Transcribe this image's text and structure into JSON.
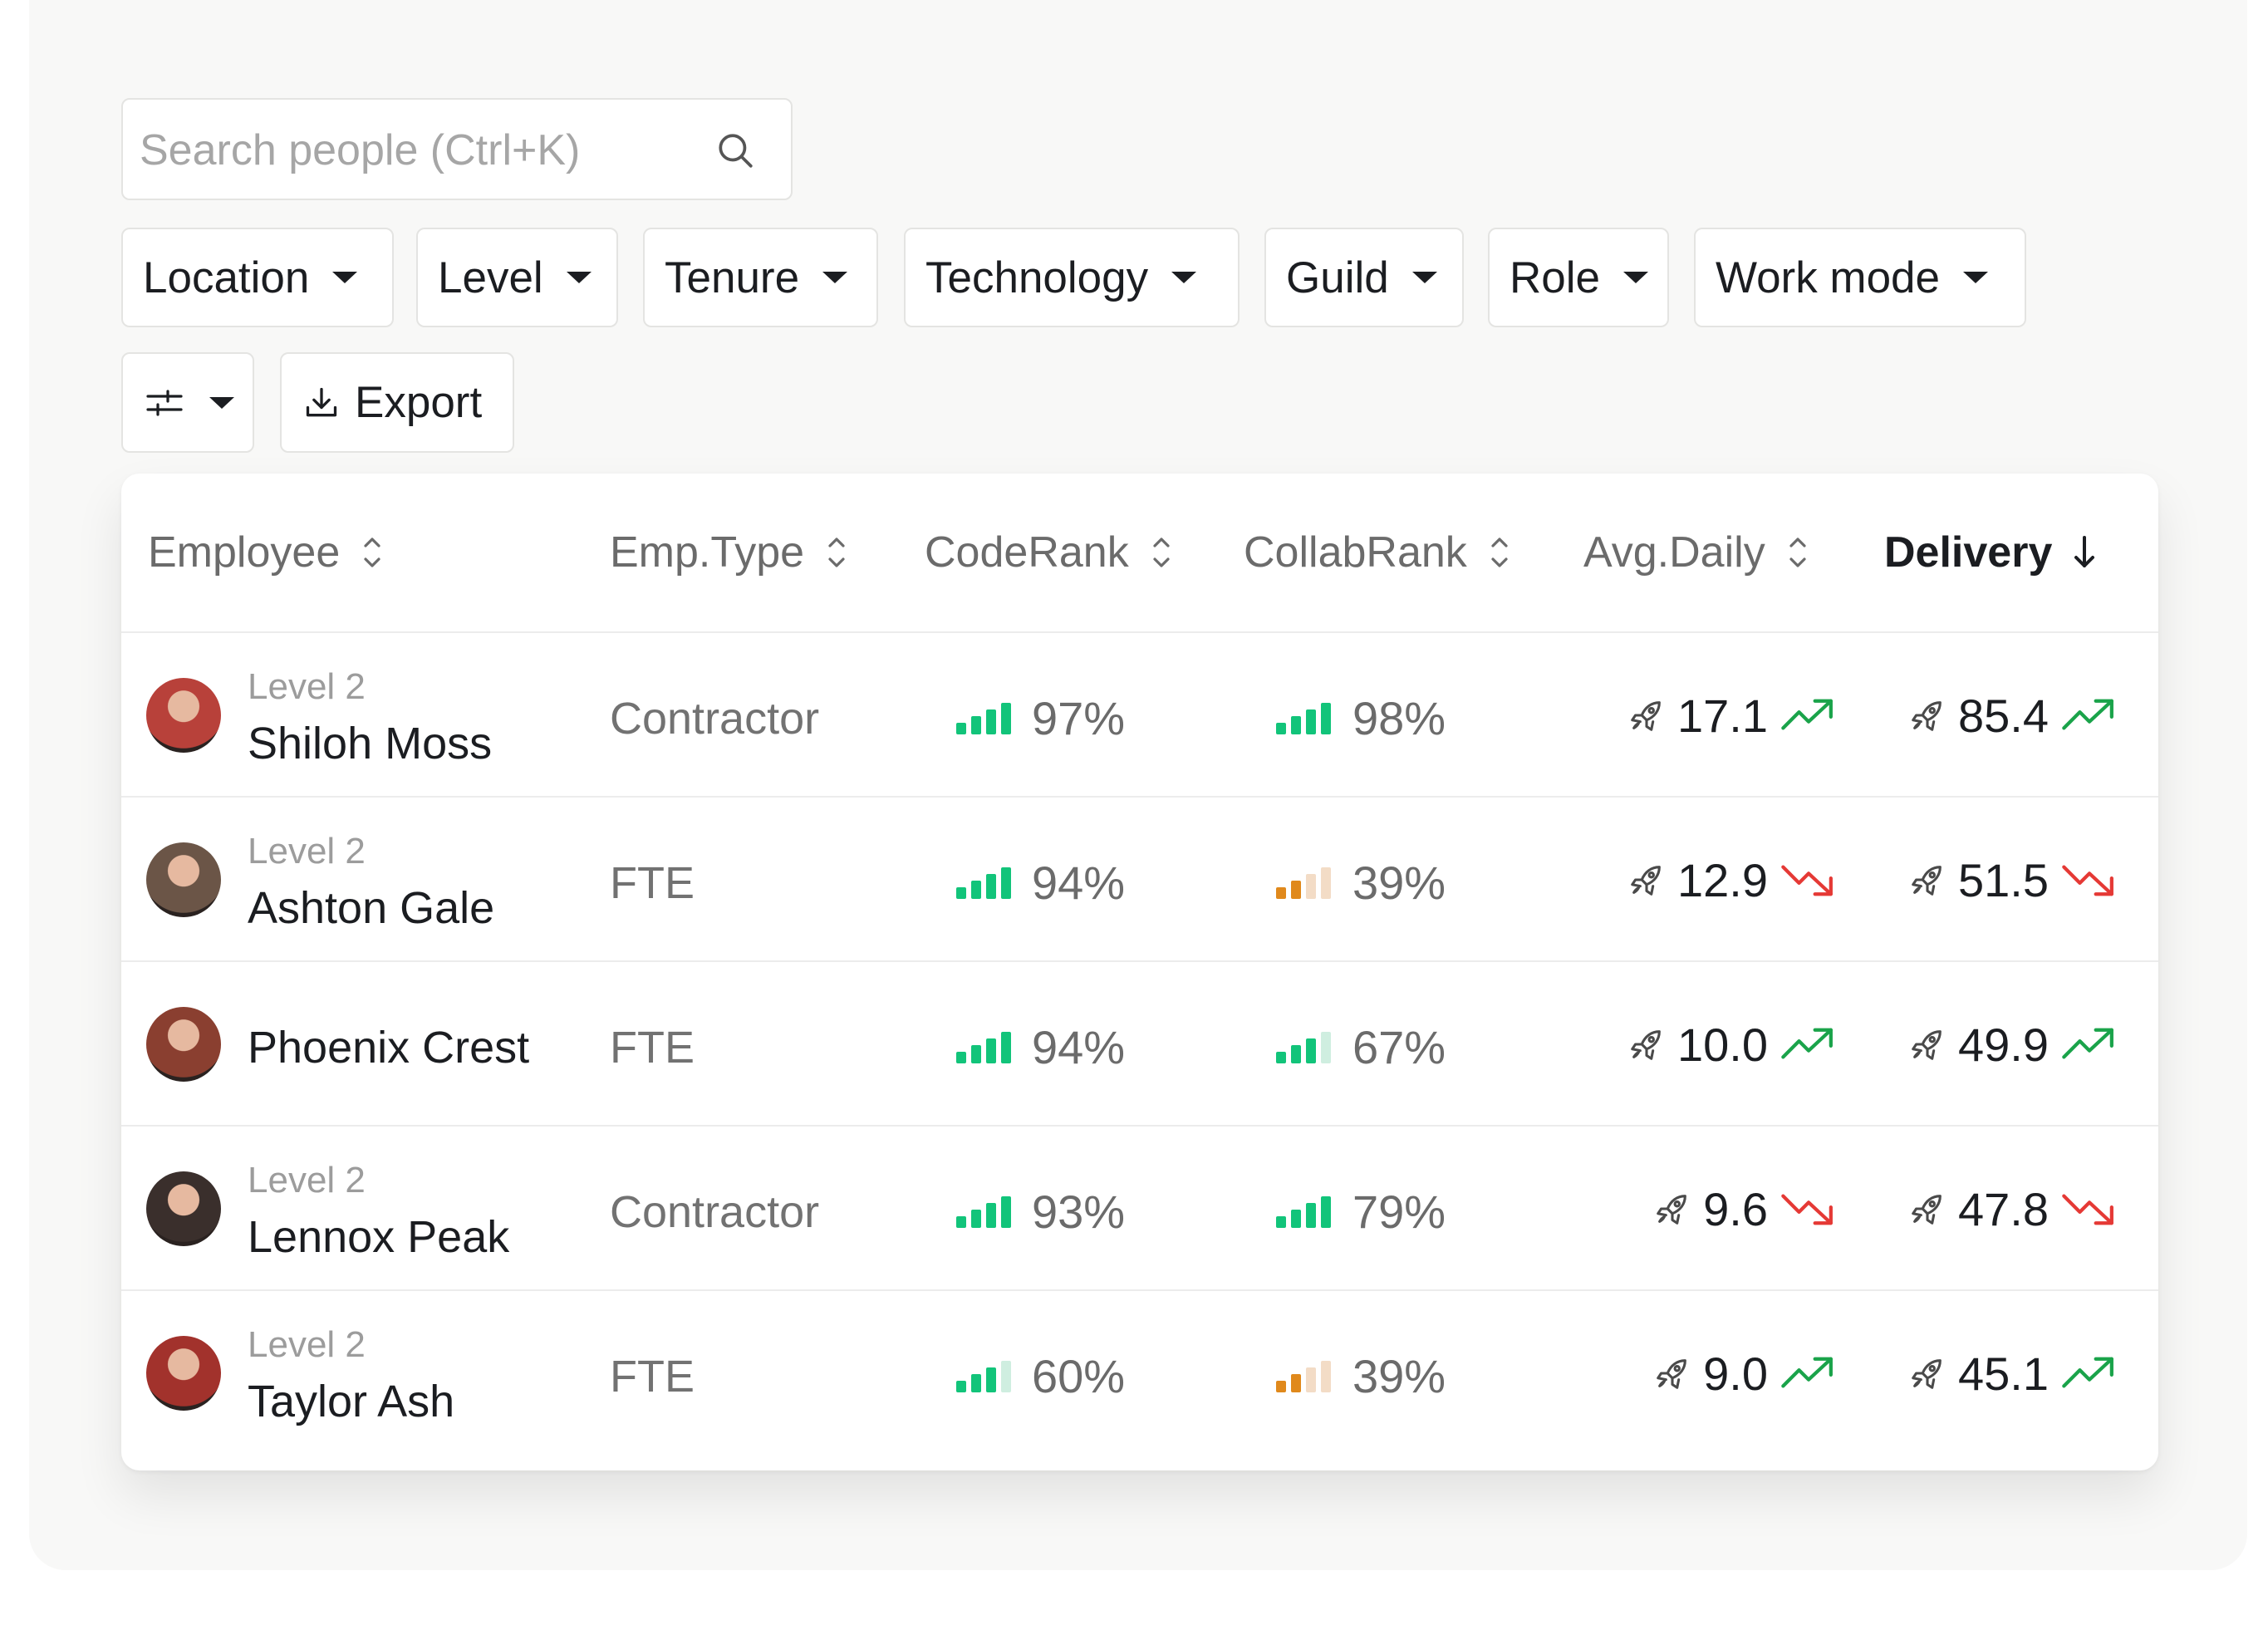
{
  "search": {
    "placeholder": "Search people (Ctrl+K)"
  },
  "filters": [
    "Location",
    "Level",
    "Tenure",
    "Technology",
    "Guild",
    "Role",
    "Work mode"
  ],
  "toolbar": {
    "export_label": "Export"
  },
  "columns": {
    "employee": "Employee",
    "emp_type": "Emp.Type",
    "coderank": "CodeRank",
    "collabrank": "CollabRank",
    "avg_daily": "Avg.Daily",
    "delivery": "Delivery"
  },
  "colors": {
    "up": "#1aa34a",
    "down": "#e53935",
    "bar_green": "#12c47a",
    "bar_orange": "#e0891c"
  },
  "rows": [
    {
      "level": "Level 2",
      "name": "Shiloh Moss",
      "emp_type": "Contractor",
      "coderank": "97%",
      "coderank_bars": 4,
      "coderank_color": "green",
      "collabrank": "98%",
      "collabrank_bars": 4,
      "collabrank_color": "green",
      "avg_daily": "17.1",
      "avg_trend": "up",
      "delivery": "85.4",
      "delivery_trend": "up",
      "avatar_color": "#b8413a"
    },
    {
      "level": "Level 2",
      "name": "Ashton Gale",
      "emp_type": "FTE",
      "coderank": "94%",
      "coderank_bars": 4,
      "coderank_color": "green",
      "collabrank": "39%",
      "collabrank_bars": 2,
      "collabrank_color": "orange",
      "avg_daily": "12.9",
      "avg_trend": "down",
      "delivery": "51.5",
      "delivery_trend": "down",
      "avatar_color": "#6b5547"
    },
    {
      "level": "",
      "name": "Phoenix Crest",
      "emp_type": "FTE",
      "coderank": "94%",
      "coderank_bars": 4,
      "coderank_color": "green",
      "collabrank": "67%",
      "collabrank_bars": 3,
      "collabrank_color": "green",
      "avg_daily": "10.0",
      "avg_trend": "up",
      "delivery": "49.9",
      "delivery_trend": "up",
      "avatar_color": "#8a3f30"
    },
    {
      "level": "Level 2",
      "name": "Lennox Peak",
      "emp_type": "Contractor",
      "coderank": "93%",
      "coderank_bars": 4,
      "coderank_color": "green",
      "collabrank": "79%",
      "collabrank_bars": 4,
      "collabrank_color": "green",
      "avg_daily": "9.6",
      "avg_trend": "down",
      "delivery": "47.8",
      "delivery_trend": "down",
      "avatar_color": "#3a2f2c"
    },
    {
      "level": "Level 2",
      "name": "Taylor Ash",
      "emp_type": "FTE",
      "coderank": "60%",
      "coderank_bars": 3,
      "coderank_color": "green",
      "collabrank": "39%",
      "collabrank_bars": 2,
      "collabrank_color": "orange",
      "avg_daily": "9.0",
      "avg_trend": "up",
      "delivery": "45.1",
      "delivery_trend": "up",
      "avatar_color": "#a2322c"
    }
  ]
}
